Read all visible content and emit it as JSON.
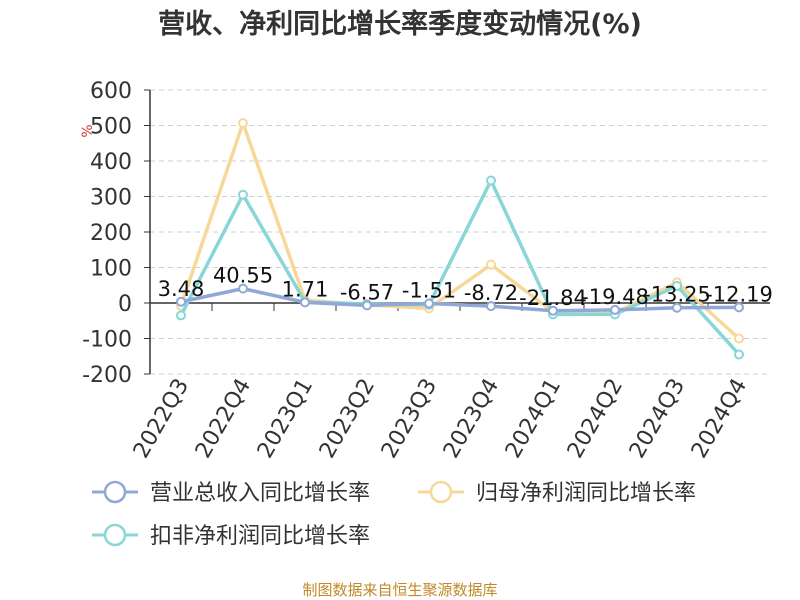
{
  "chart_data": {
    "type": "line",
    "title": "营收、净利同比增长率季度变动情况(%)",
    "unit_label": "%",
    "categories": [
      "2022Q3",
      "2022Q4",
      "2023Q1",
      "2023Q2",
      "2023Q3",
      "2023Q4",
      "2024Q1",
      "2024Q2",
      "2024Q3",
      "2024Q4"
    ],
    "ylim": [
      -200,
      600
    ],
    "yticks": [
      600,
      500,
      400,
      300,
      200,
      100,
      0,
      -100,
      -200
    ],
    "grid": true,
    "legend_position": "bottom",
    "series": [
      {
        "name": "营业总收入同比增长率",
        "color": "#8fa8d8",
        "values": [
          3.48,
          40.55,
          1.71,
          -6.57,
          -1.51,
          -8.72,
          -21.84,
          -19.48,
          -13.25,
          -12.19
        ],
        "labels": [
          "3.48",
          "40.55",
          "1.71",
          "-6.57",
          "-1.51",
          "-8.72",
          "-21.84",
          "-19.48",
          "-13.25",
          "-12.19"
        ]
      },
      {
        "name": "归母净利润同比增长率",
        "color": "#f8d898",
        "values": [
          -8,
          507,
          8,
          -5,
          -15,
          108,
          -25,
          -28,
          58,
          -100
        ]
      },
      {
        "name": "扣非净利润同比增长率",
        "color": "#88d6d8",
        "values": [
          -35,
          305,
          3,
          -3,
          -5,
          345,
          -32,
          -32,
          48,
          -145
        ]
      }
    ],
    "source": "制图数据来自恒生聚源数据库"
  }
}
